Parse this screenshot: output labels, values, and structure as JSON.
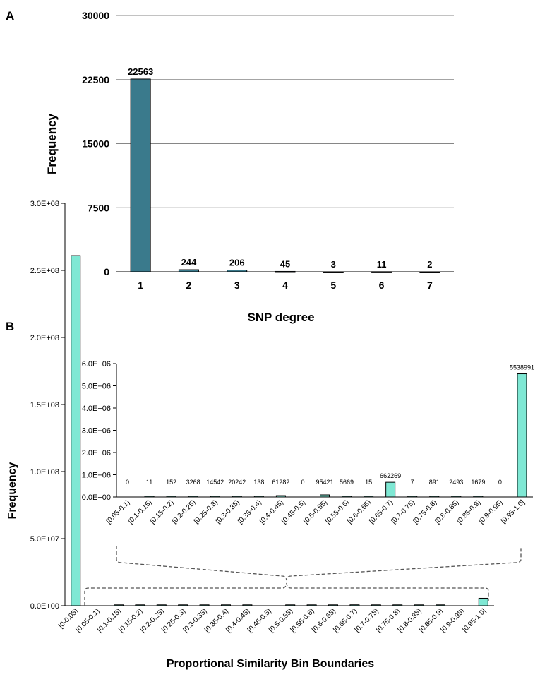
{
  "chart_data": [
    {
      "panel": "A",
      "type": "bar",
      "title": "",
      "xlabel": "SNP degree",
      "ylabel": "Frequency",
      "ylim": [
        0,
        30000
      ],
      "yticks": [
        "0",
        "7500",
        "15000",
        "22500",
        "30000"
      ],
      "categories": [
        "1",
        "2",
        "3",
        "4",
        "5",
        "6",
        "7"
      ],
      "values": [
        22563,
        244,
        206,
        45,
        3,
        11,
        2
      ],
      "value_labels": [
        "22563",
        "244",
        "206",
        "45",
        "3",
        "11",
        "2"
      ],
      "grid": true,
      "bar_color": "#3a7a8c"
    },
    {
      "panel": "B",
      "type": "bar",
      "title": "",
      "xlabel": "Proportional Similarity Bin Boundaries",
      "ylabel": "Frequency",
      "ylim": [
        0,
        300000000
      ],
      "yticks": [
        "0.0E+00",
        "5.0E+07",
        "1.0E+08",
        "1.5E+08",
        "2.0E+08",
        "2.5E+08",
        "3.0E+08"
      ],
      "categories": [
        "[0-0.05)",
        "[0.05-0.1)",
        "[0.1-0.15)",
        "[0.15-0.2)",
        "[0.2-0.25)",
        "[0.25-0.3)",
        "[0.3-0.35)",
        "[0.35-0.4)",
        "[0.4-0.45)",
        "[0.45-0.5)",
        "[0.5-0.55)",
        "[0.55-0.6)",
        "[0.6-0.65)",
        "[0.65-0.7)",
        "[0.7-0.75)",
        "[0.75-0.8)",
        "[0.8-0.85)",
        "[0.85-0.9)",
        "[0.9-0.95)",
        "[0.95-1.0]"
      ],
      "values": [
        261000000,
        0,
        11,
        152,
        3268,
        14542,
        20242,
        138,
        61282,
        0,
        95421,
        5669,
        15,
        662269,
        7,
        891,
        2493,
        1679,
        0,
        5538991
      ],
      "grid": false,
      "bar_color": "#7fe8d4"
    },
    {
      "panel": "B-inset",
      "type": "bar",
      "title": "",
      "xlabel": "",
      "ylabel": "",
      "ylim": [
        0,
        6000000
      ],
      "yticks": [
        "0.0E+00",
        "1.0E+06",
        "2.0E+06",
        "3.0E+06",
        "4.0E+06",
        "5.0E+06",
        "6.0E+06"
      ],
      "categories": [
        "[0.05-0.1)",
        "[0.1-0.15)",
        "[0.15-0.2)",
        "[0.2-0.25)",
        "[0.25-0.3)",
        "[0.3-0.35)",
        "[0.35-0.4)",
        "[0.4-0.45)",
        "[0.45-0.5)",
        "[0.5-0.55)",
        "[0.55-0.6)",
        "[0.6-0.65)",
        "[0.65-0.7)",
        "[0.7-0.75)",
        "[0.75-0.8)",
        "[0.8-0.85)",
        "[0.85-0.9)",
        "[0.9-0.95)",
        "[0.95-1.0]"
      ],
      "values": [
        0,
        11,
        152,
        3268,
        14542,
        20242,
        138,
        61282,
        0,
        95421,
        5669,
        15,
        662269,
        7,
        891,
        2493,
        1679,
        0,
        5538991
      ],
      "value_labels": [
        "0",
        "11",
        "152",
        "3268",
        "14542",
        "20242",
        "138",
        "61282",
        "0",
        "95421",
        "5669",
        "15",
        "662269",
        "7",
        "891",
        "2493",
        "1679",
        "0",
        "5538991"
      ],
      "grid": false,
      "bar_color": "#7fe8d4"
    }
  ]
}
